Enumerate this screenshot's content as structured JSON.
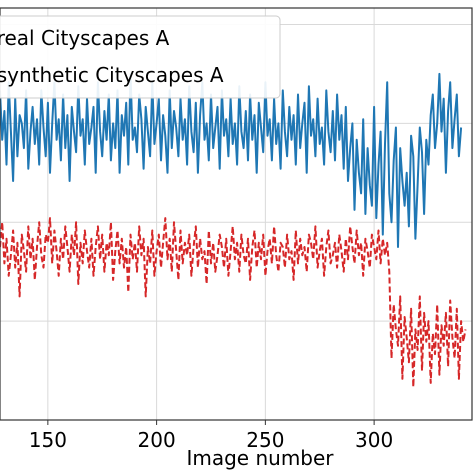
{
  "chart_data": {
    "type": "line",
    "xlabel": "Image number",
    "ylabel": "",
    "title": "",
    "xlim": [
      128,
      345
    ],
    "ylim": [
      0,
      100
    ],
    "x_ticks": [
      150,
      200,
      250,
      300
    ],
    "grid": true,
    "legend_placement": "top-left",
    "series": [
      {
        "name": "... on real Cityscapes A",
        "color": "#1f77b4",
        "style": "solid",
        "x_start": 128,
        "values": [
          80,
          68,
          75,
          62,
          82,
          70,
          58,
          78,
          64,
          74,
          72,
          66,
          80,
          61,
          70,
          76,
          67,
          73,
          62,
          80,
          71,
          64,
          77,
          60,
          72,
          82,
          68,
          73,
          63,
          79,
          66,
          74,
          58,
          76,
          70,
          65,
          81,
          69,
          73,
          62,
          78,
          67,
          71,
          76,
          60,
          82,
          70,
          64,
          75,
          68,
          79,
          63,
          72,
          66,
          80,
          60,
          74,
          69,
          77,
          62,
          84,
          68,
          71,
          65,
          79,
          73,
          61,
          76,
          70,
          64,
          82,
          67,
          72,
          78,
          63,
          74,
          69,
          60,
          80,
          66,
          75,
          71,
          64,
          78,
          68,
          73,
          62,
          81,
          70,
          65,
          77,
          60,
          74,
          82,
          68,
          72,
          63,
          79,
          66,
          71,
          76,
          61,
          80,
          69,
          73,
          64,
          78,
          67,
          72,
          62,
          81,
          70,
          66,
          75,
          63,
          79,
          68,
          74,
          60,
          77,
          71,
          65,
          82,
          69,
          73,
          63,
          78,
          67,
          72,
          61,
          80,
          70,
          64,
          76,
          68,
          74,
          62,
          79,
          66,
          72,
          77,
          60,
          81,
          69,
          73,
          64,
          78,
          67,
          71,
          62,
          80,
          70,
          65,
          75,
          63,
          79,
          68,
          74,
          61,
          76,
          58,
          66,
          72,
          51,
          68,
          60,
          55,
          73,
          50,
          66,
          57,
          52,
          76,
          49,
          62,
          70,
          45,
          67,
          82,
          55,
          48,
          63,
          71,
          42,
          66,
          58,
          52,
          60,
          47,
          69,
          64,
          44,
          57,
          71,
          65,
          50,
          68,
          62,
          74,
          79,
          66,
          72,
          84,
          70,
          78,
          60,
          75,
          82,
          66,
          73,
          79,
          64,
          71
        ]
      },
      {
        "name": "... on synthetic Cityscapes A",
        "color": "#d62728",
        "style": "dashed",
        "x_start": 128,
        "values": [
          42,
          48,
          38,
          44,
          35,
          40,
          46,
          37,
          43,
          30,
          45,
          41,
          36,
          47,
          39,
          44,
          34,
          42,
          48,
          40,
          37,
          45,
          43,
          49,
          38,
          46,
          41,
          35,
          44,
          39,
          47,
          42,
          36,
          45,
          40,
          48,
          33,
          43,
          38,
          46,
          41,
          37,
          44,
          35,
          42,
          47,
          39,
          45,
          36,
          43,
          40,
          48,
          34,
          41,
          46,
          38,
          44,
          37,
          42,
          31,
          45,
          39,
          43,
          36,
          47,
          40,
          44,
          30,
          42,
          38,
          46,
          35,
          41,
          45,
          37,
          43,
          49,
          39,
          44,
          36,
          48,
          41,
          34,
          46,
          38,
          43,
          40,
          45,
          35,
          42,
          47,
          37,
          44,
          39,
          41,
          33,
          46,
          38,
          43,
          36,
          40,
          45,
          42,
          37,
          44,
          35,
          41,
          47,
          39,
          43,
          36,
          45,
          40,
          38,
          44,
          34,
          42,
          46,
          37,
          43,
          39,
          45,
          35,
          41,
          44,
          38,
          47,
          40,
          36,
          43,
          42,
          37,
          45,
          39,
          41,
          34,
          46,
          38,
          44,
          40,
          42,
          36,
          45,
          43,
          39,
          47,
          37,
          41,
          44,
          35,
          42,
          46,
          38,
          40,
          43,
          37,
          45,
          41,
          36,
          44,
          39,
          47,
          42,
          38,
          46,
          40,
          43,
          35,
          44,
          41,
          37,
          45,
          42,
          39,
          46,
          38,
          44,
          40,
          43,
          36,
          15,
          28,
          22,
          18,
          30,
          10,
          25,
          20,
          14,
          27,
          8,
          22,
          17,
          30,
          12,
          26,
          19,
          24,
          9,
          21,
          16,
          28,
          11,
          23,
          18,
          26,
          13,
          29,
          20,
          15,
          27,
          10,
          24,
          19,
          22
        ]
      }
    ]
  }
}
